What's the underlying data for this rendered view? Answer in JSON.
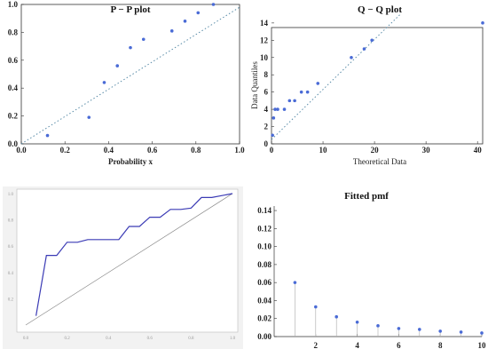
{
  "colors": {
    "point": "#4a6bd6",
    "ref_line": "#5a8ca8",
    "frame": "#333333",
    "ecdf_line": "#3b3bb5",
    "diag_line": "#888888",
    "stem": "#aaaaaa"
  },
  "chart_data": [
    {
      "type": "scatter",
      "title": "P − P plot",
      "xlabel": "Probability x",
      "ylabel": "",
      "xlim": [
        0.0,
        1.0
      ],
      "ylim": [
        0.0,
        1.0
      ],
      "x_ticks": [
        "0.0",
        "0.2",
        "0.4",
        "0.6",
        "0.8",
        "1.0"
      ],
      "y_ticks": [
        "0.0",
        "0.2",
        "0.4",
        "0.6",
        "0.8",
        "1.0"
      ],
      "reference_line": {
        "from": [
          0,
          0
        ],
        "to": [
          1,
          0.98
        ],
        "style": "dotted"
      },
      "points": [
        {
          "x": 0.12,
          "y": 0.06
        },
        {
          "x": 0.31,
          "y": 0.19
        },
        {
          "x": 0.38,
          "y": 0.44
        },
        {
          "x": 0.44,
          "y": 0.56
        },
        {
          "x": 0.5,
          "y": 0.69
        },
        {
          "x": 0.56,
          "y": 0.75
        },
        {
          "x": 0.69,
          "y": 0.81
        },
        {
          "x": 0.75,
          "y": 0.88
        },
        {
          "x": 0.81,
          "y": 0.94
        },
        {
          "x": 0.88,
          "y": 1.0
        }
      ]
    },
    {
      "type": "scatter",
      "title": "Q − Q plot",
      "xlabel": "Theoretical Data",
      "ylabel": "Data Quantiles",
      "xlim": [
        0,
        41
      ],
      "ylim": [
        0,
        14.5
      ],
      "x_ticks": [
        "0",
        "10",
        "20",
        "30",
        "40"
      ],
      "y_ticks": [
        "0",
        "2",
        "4",
        "6",
        "8",
        "10",
        "12",
        "14"
      ],
      "reference_line": {
        "from": [
          0,
          0.5
        ],
        "to": [
          25,
          15
        ],
        "style": "dotted"
      },
      "points": [
        {
          "x": 0.2,
          "y": 1
        },
        {
          "x": 0.4,
          "y": 3
        },
        {
          "x": 0.7,
          "y": 4
        },
        {
          "x": 1.2,
          "y": 4
        },
        {
          "x": 2.5,
          "y": 4
        },
        {
          "x": 3.5,
          "y": 5
        },
        {
          "x": 4.5,
          "y": 5
        },
        {
          "x": 5.8,
          "y": 6
        },
        {
          "x": 7.0,
          "y": 6
        },
        {
          "x": 9.0,
          "y": 7
        },
        {
          "x": 15.5,
          "y": 10
        },
        {
          "x": 18.0,
          "y": 11
        },
        {
          "x": 19.5,
          "y": 12
        },
        {
          "x": 41.0,
          "y": 14
        }
      ]
    },
    {
      "type": "line",
      "title": "",
      "xlabel": "",
      "ylabel": "",
      "xlim": [
        0,
        1
      ],
      "ylim": [
        0,
        1
      ],
      "x_ticks": [
        "0.0",
        "0.2",
        "0.4",
        "0.6",
        "0.8",
        "1.0"
      ],
      "y_ticks": [
        "0.2",
        "0.4",
        "0.6",
        "0.8",
        "1.0"
      ],
      "series": [
        {
          "values": [
            [
              0.05,
              0.07
            ],
            [
              0.1,
              0.53
            ],
            [
              0.15,
              0.53
            ],
            [
              0.2,
              0.63
            ],
            [
              0.25,
              0.63
            ],
            [
              0.3,
              0.65
            ],
            [
              0.35,
              0.65
            ],
            [
              0.45,
              0.65
            ],
            [
              0.5,
              0.75
            ],
            [
              0.55,
              0.75
            ],
            [
              0.6,
              0.82
            ],
            [
              0.65,
              0.82
            ],
            [
              0.7,
              0.88
            ],
            [
              0.75,
              0.88
            ],
            [
              0.8,
              0.89
            ],
            [
              0.85,
              0.97
            ],
            [
              0.9,
              0.97
            ],
            [
              1.0,
              1.0
            ]
          ]
        },
        {
          "values": [
            [
              0,
              0
            ],
            [
              1,
              1
            ]
          ]
        }
      ]
    },
    {
      "type": "stem",
      "title": "Fitted pmf",
      "xlabel": "",
      "ylabel": "",
      "xlim": [
        0,
        10
      ],
      "ylim": [
        0,
        0.145
      ],
      "x_ticks": [
        "2",
        "4",
        "6",
        "8",
        "10"
      ],
      "y_ticks": [
        "0.00",
        "0.02",
        "0.04",
        "0.06",
        "0.08",
        "0.10",
        "0.12",
        "0.14"
      ],
      "categories": [
        1,
        2,
        3,
        4,
        5,
        6,
        7,
        8,
        9,
        10
      ],
      "values": [
        0.06,
        0.033,
        0.022,
        0.016,
        0.012,
        0.009,
        0.008,
        0.006,
        0.005,
        0.004
      ]
    }
  ]
}
